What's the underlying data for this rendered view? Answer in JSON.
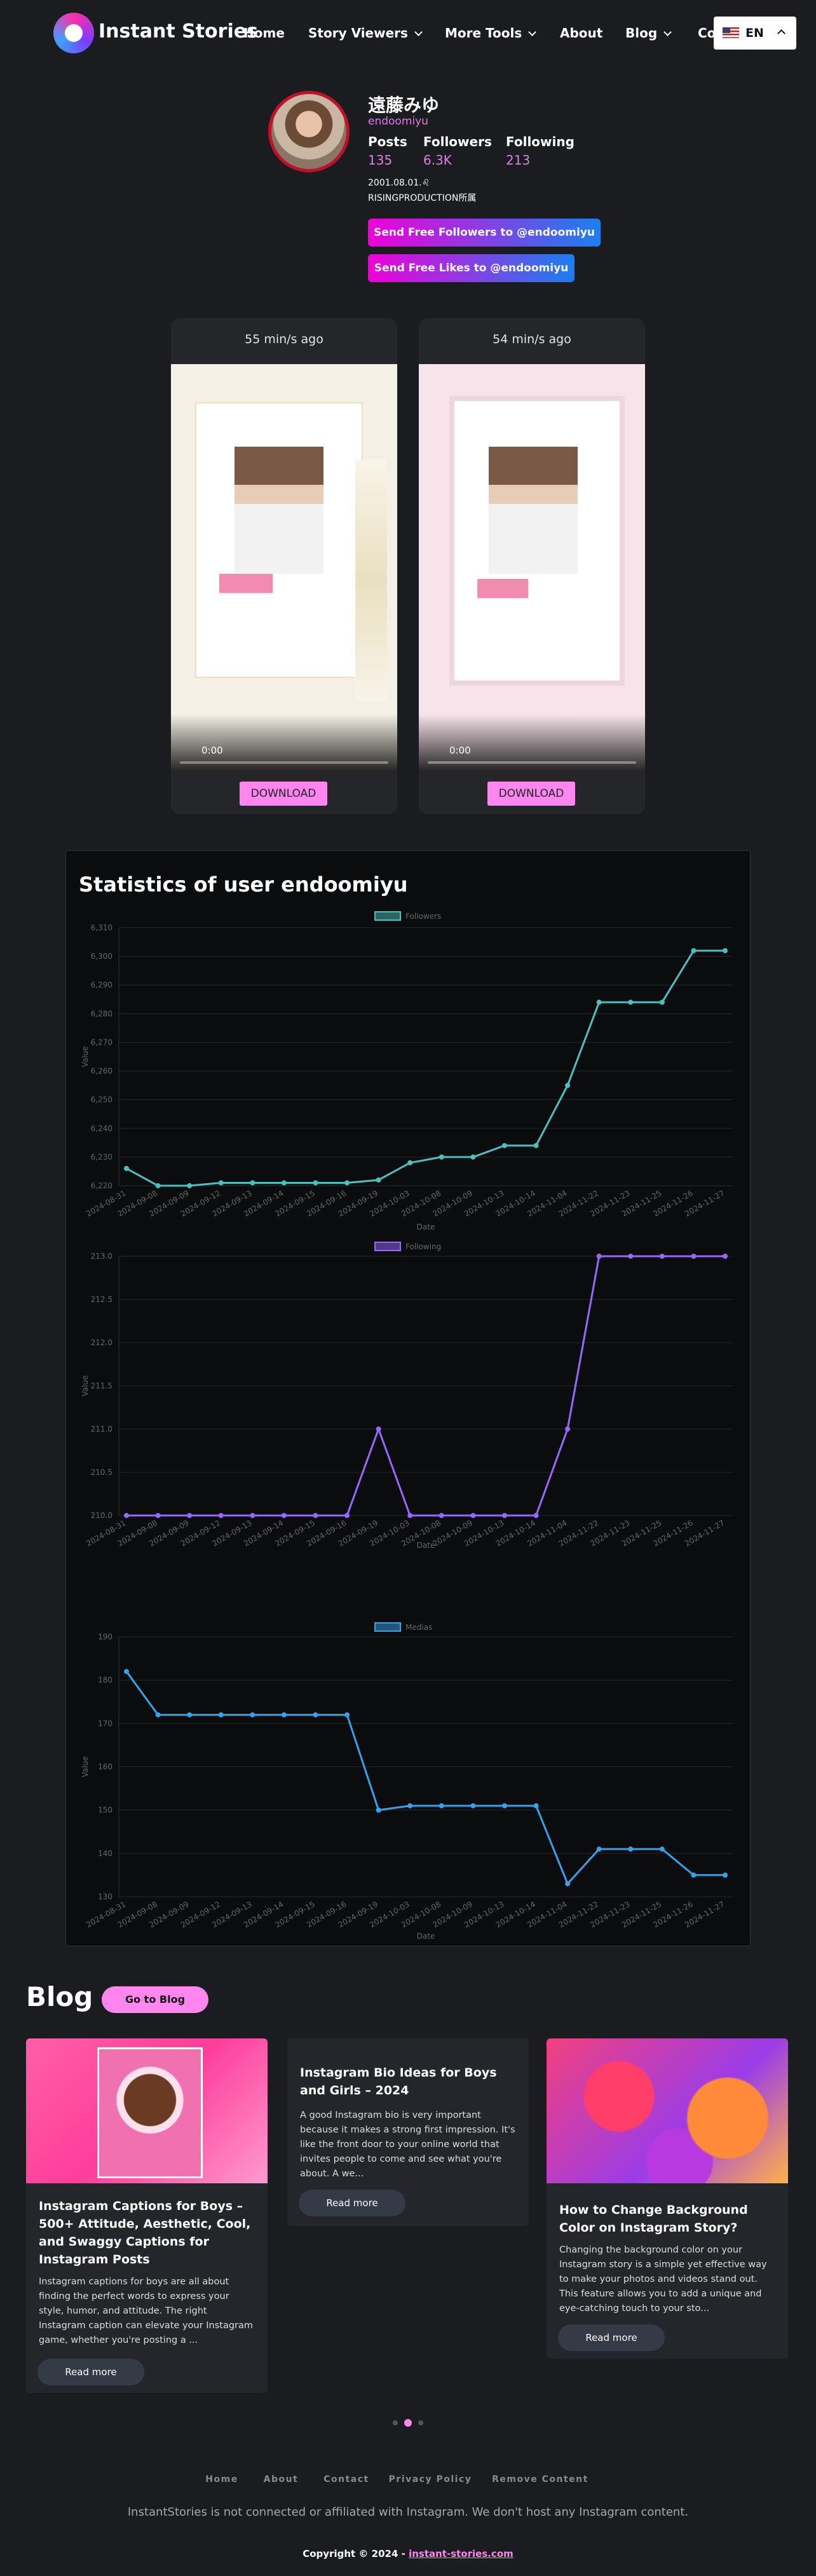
{
  "nav": {
    "brand": "Instant Stories",
    "links": [
      "Home",
      "Story Viewers",
      "More Tools",
      "About",
      "Blog",
      "Contact"
    ],
    "lang": "EN"
  },
  "profile": {
    "name": "遠藤みゆ",
    "username": "endoomiyu",
    "stats": [
      {
        "label": "Posts",
        "value": 135
      },
      {
        "label": "Followers",
        "value": "6.3K"
      },
      {
        "label": "Following",
        "value": 213
      }
    ],
    "bio": [
      "2001.08.01.♌",
      "RISINGPRODUCTION所属"
    ],
    "buttons": [
      "Send Free Followers to @endoomiyu",
      "Send Free Likes to @endoomiyu"
    ]
  },
  "stories": [
    {
      "time": "55 min/s ago",
      "player_time": "0:00",
      "button": "DOWNLOAD"
    },
    {
      "time": "54 min/s ago",
      "player_time": "0:00",
      "button": "DOWNLOAD"
    }
  ],
  "statistics": {
    "title": "Statistics of user endoomiyu"
  },
  "chart_data": [
    {
      "type": "line",
      "xlabel": "Date",
      "ylabel": "Value",
      "categories": [
        "2024-08-31",
        "2024-09-08",
        "2024-09-09",
        "2024-09-12",
        "2024-09-13",
        "2024-09-14",
        "2024-09-15",
        "2024-09-16",
        "2024-09-19",
        "2024-10-03",
        "2024-10-08",
        "2024-10-09",
        "2024-10-13",
        "2024-10-14",
        "2024-11-04",
        "2024-11-22",
        "2024-11-23",
        "2024-11-25",
        "2024-11-26",
        "2024-11-27"
      ],
      "series": [
        {
          "name": "Followers",
          "color": "#4bc0c0",
          "values": [
            6226,
            6220,
            6220,
            6221,
            6221,
            6221,
            6221,
            6221,
            6222,
            6228,
            6230,
            6230,
            6234,
            6234,
            6255,
            6284,
            6284,
            6284,
            6302,
            6302
          ]
        }
      ],
      "ylim": [
        6220,
        6310
      ],
      "yticks": [
        {
          "value": 6220,
          "label": "6,220"
        },
        {
          "value": 6230,
          "label": "6,230"
        },
        {
          "value": 6240,
          "label": "6,240"
        },
        {
          "value": 6250,
          "label": "6,250"
        },
        {
          "value": 6260,
          "label": "6,260"
        },
        {
          "value": 6270,
          "label": "6,270"
        },
        {
          "value": 6280,
          "label": "6,280"
        },
        {
          "value": 6290,
          "label": "6,290"
        },
        {
          "value": 6300,
          "label": "6,300"
        },
        {
          "value": 6310,
          "label": "6,310"
        }
      ],
      "grid": true
    },
    {
      "type": "line",
      "xlabel": "Date",
      "ylabel": "Value",
      "categories": [
        "2024-08-31",
        "2024-09-08",
        "2024-09-09",
        "2024-09-12",
        "2024-09-13",
        "2024-09-14",
        "2024-09-15",
        "2024-09-16",
        "2024-09-19",
        "2024-10-03",
        "2024-10-08",
        "2024-10-09",
        "2024-10-13",
        "2024-10-14",
        "2024-11-04",
        "2024-11-22",
        "2024-11-23",
        "2024-11-25",
        "2024-11-26",
        "2024-11-27"
      ],
      "series": [
        {
          "name": "Following",
          "color": "#9966ff",
          "values": [
            210,
            210,
            210,
            210,
            210,
            210,
            210,
            210,
            211,
            210,
            210,
            210,
            210,
            210,
            211,
            213,
            213,
            213,
            213,
            213
          ]
        }
      ],
      "ylim": [
        210,
        213
      ],
      "yticks": [
        {
          "value": 210,
          "label": "210.0"
        },
        210.5,
        {
          "value": 211,
          "label": "211.0"
        },
        211.5,
        {
          "value": 212,
          "label": "212.0"
        },
        212.5,
        {
          "value": 213,
          "label": "213.0"
        }
      ],
      "grid": true
    },
    {
      "type": "line",
      "xlabel": "Date",
      "ylabel": "Value",
      "categories": [
        "2024-08-31",
        "2024-09-08",
        "2024-09-09",
        "2024-09-12",
        "2024-09-13",
        "2024-09-14",
        "2024-09-15",
        "2024-09-16",
        "2024-09-19",
        "2024-10-03",
        "2024-10-08",
        "2024-10-09",
        "2024-10-13",
        "2024-10-14",
        "2024-11-04",
        "2024-11-22",
        "2024-11-23",
        "2024-11-25",
        "2024-11-26",
        "2024-11-27"
      ],
      "series": [
        {
          "name": "Medias",
          "color": "#36a2eb",
          "values": [
            182,
            172,
            172,
            172,
            172,
            172,
            172,
            172,
            150,
            151,
            151,
            151,
            151,
            151,
            133,
            141,
            141,
            141,
            135,
            135
          ]
        }
      ],
      "ylim": [
        130,
        190
      ],
      "yticks": [
        130,
        140,
        150,
        160,
        170,
        180,
        190
      ],
      "grid": true
    }
  ],
  "blog": {
    "title": "Blog",
    "button": "Go to Blog",
    "posts": [
      {
        "title": "Instagram Captions for Boys – 500+ Attitude, Aesthetic, Cool, and Swaggy Captions for Instagram Posts",
        "excerpt": "Instagram captions for boys are all about finding the perfect words to express your style, humor, and attitude. The right Instagram caption can elevate your Instagram game, whether you're posting a ...",
        "button": "Read more"
      },
      {
        "title": "Instagram Bio Ideas for Boys and Girls – 2024",
        "excerpt": "A good Instagram bio is very important because it makes a strong first impression. It's like the front door to your online world that invites people to come and see what you're about. A we...",
        "button": "Read more"
      },
      {
        "title": "How to Change Background Color on Instagram Story?",
        "excerpt": "Changing the background color on your Instagram story is a simple yet effective way to make your photos and videos stand out. This feature allows you to add a unique and eye-catching touch to your sto...",
        "button": "Read more"
      }
    ]
  },
  "footer": {
    "links": [
      "Home",
      "About",
      "Contact",
      "Privacy Policy",
      "Remove Content"
    ],
    "disclaimer": "InstantStories is not connected or affiliated with Instagram. We don't host any Instagram content.",
    "copyright": "Copyright © 2024 -",
    "domain": "instant-stories.com"
  }
}
